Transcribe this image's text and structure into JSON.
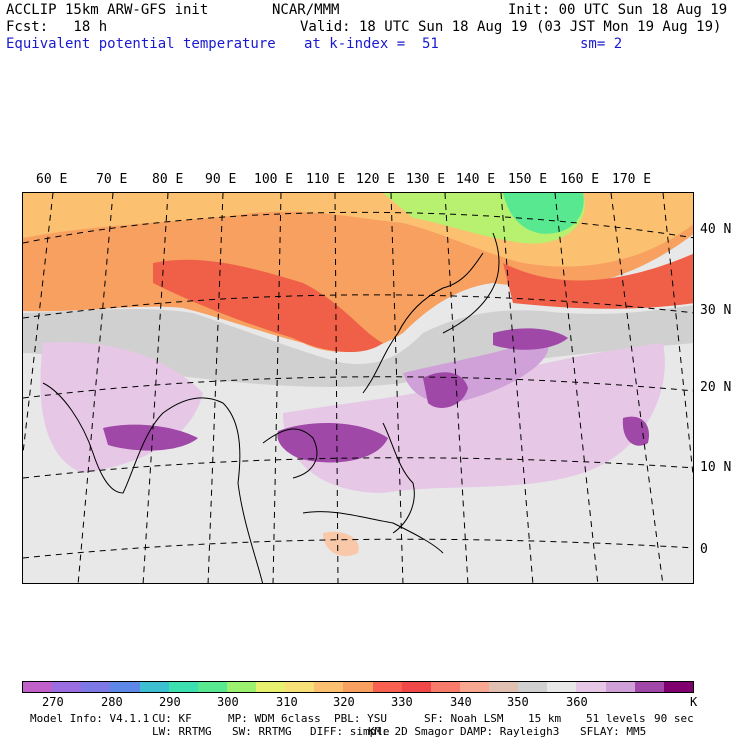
{
  "header": {
    "line1_left": "ACCLIP 15km ARW-GFS init",
    "line1_mid": "NCAR/MMM",
    "line1_right": "Init: 00 UTC Sun 18 Aug 19",
    "line2_left": "Fcst:   18 h",
    "line2_right": "Valid: 18 UTC Sun 18 Aug 19 (03 JST Mon 19 Aug 19)",
    "line3_field": "Equivalent potential temperature",
    "line3_level": "at k-index =  51",
    "line3_smooth": "sm= 2"
  },
  "map": {
    "lon_labels": [
      "60 E",
      "70 E",
      "80 E",
      "90 E",
      "100 E",
      "110 E",
      "120 E",
      "130 E",
      "140 E",
      "150 E",
      "160 E",
      "170 E"
    ],
    "lat_labels": [
      "40 N",
      "30 N",
      "20 N",
      "10 N",
      "0"
    ]
  },
  "colorbar": {
    "colors": [
      "#c060c8",
      "#9a6ee0",
      "#7c78e6",
      "#5e88e8",
      "#3cc0d0",
      "#3ce0b0",
      "#58e890",
      "#9cf070",
      "#e8f070",
      "#f8e078",
      "#fbc070",
      "#f8a060",
      "#f86050",
      "#f04848",
      "#f87c6c",
      "#f8a890",
      "#e0c0b0",
      "#d0d0d0",
      "#e8e8e8",
      "#e6c8e6",
      "#d0a0d8",
      "#a048a8",
      "#800070"
    ],
    "tick_labels": [
      "270",
      "280",
      "290",
      "300",
      "310",
      "320",
      "330",
      "340",
      "350",
      "360"
    ],
    "units": "K"
  },
  "footer": {
    "line1": [
      "Model Info: V4.1.1",
      "CU: KF",
      "MP: WDM 6class",
      "PBL: YSU",
      "SF: Noah LSM",
      "15 km",
      "51 levels",
      "90 sec"
    ],
    "line2": [
      "LW: RRTMG",
      "SW: RRTMG",
      "DIFF: simple",
      "KM: 2D Smagor",
      "DAMP: Rayleigh3",
      "SFLAY: MM5"
    ]
  }
}
